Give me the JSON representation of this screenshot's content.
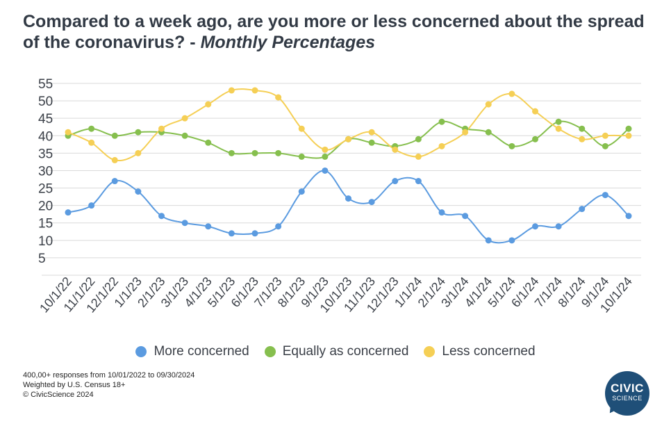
{
  "title": {
    "main": "Compared to a week ago, are you more or less concerned about the spread of the coronavirus? - ",
    "italic": "Monthly Percentages"
  },
  "chart_data": {
    "type": "line",
    "categories": [
      "10/1/22",
      "11/1/22",
      "12/1/22",
      "1/1/23",
      "2/1/23",
      "3/1/23",
      "4/1/23",
      "5/1/23",
      "6/1/23",
      "7/1/23",
      "8/1/23",
      "9/1/23",
      "10/1/23",
      "11/1/23",
      "12/1/23",
      "1/1/24",
      "2/1/24",
      "3/1/24",
      "4/1/24",
      "5/1/24",
      "6/1/24",
      "7/1/24",
      "8/1/24",
      "9/1/24",
      "10/1/24"
    ],
    "yticks": [
      5,
      10,
      15,
      20,
      25,
      30,
      35,
      40,
      45,
      50,
      55
    ],
    "ylim": [
      0,
      55
    ],
    "grid": true,
    "legend_position": "bottom",
    "series": [
      {
        "name": "More concerned",
        "color": "#5b9be0",
        "values": [
          18,
          20,
          27,
          24,
          17,
          15,
          14,
          12,
          12,
          14,
          24,
          30,
          22,
          21,
          27,
          27,
          18,
          17,
          10,
          10,
          14,
          14,
          19,
          23,
          17
        ]
      },
      {
        "name": "Equally as concerned",
        "color": "#86bf4e",
        "values": [
          40,
          42,
          40,
          41,
          41,
          40,
          38,
          35,
          35,
          35,
          34,
          34,
          39,
          38,
          37,
          39,
          44,
          42,
          41,
          37,
          39,
          44,
          42,
          37,
          42
        ]
      },
      {
        "name": "Less concerned",
        "color": "#f5cf55",
        "values": [
          41,
          38,
          33,
          35,
          42,
          45,
          49,
          53,
          53,
          51,
          42,
          36,
          39,
          41,
          36,
          34,
          37,
          41,
          49,
          52,
          47,
          42,
          39,
          40,
          40
        ]
      }
    ]
  },
  "footnotes": {
    "line1": "400,00+ responses from 10/01/2022 to 09/30/2024",
    "line2": "Weighted by U.S. Census 18+",
    "line3": "© CivicScience 2024"
  },
  "logo": {
    "line1": "CIVIC",
    "line2": "SCIENCE"
  }
}
